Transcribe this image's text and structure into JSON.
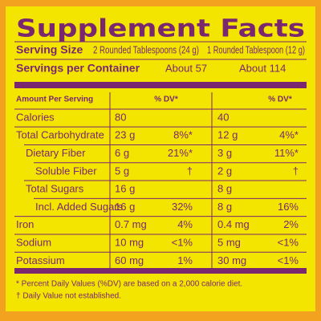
{
  "title": "Supplement Facts",
  "serving_size": {
    "label": "Serving Size",
    "values": [
      "2 Rounded Tablespoons (24 g)",
      "1 Rounded Tablespoon (12 g)"
    ]
  },
  "servings_per_container": {
    "label": "Servings per Container",
    "values": [
      "About 57",
      "About 114"
    ]
  },
  "table": {
    "header": [
      "Amount Per Serving",
      "% DV*",
      "% DV*"
    ],
    "rows": [
      [
        "Calories",
        "80",
        null,
        "40",
        null
      ],
      [
        "Total Carbohydrate",
        "23 g",
        "8%*",
        "12 g",
        "4%*"
      ],
      [
        "Dietary Fiber",
        "6 g",
        "21%*",
        "3 g",
        "11%*"
      ],
      [
        "Soluble Fiber",
        "5 g",
        "†",
        "2 g",
        "†"
      ],
      [
        "Total Sugars",
        "16 g",
        null,
        "8 g",
        null
      ],
      [
        "Incl. Added Sugars",
        "16 g",
        "32%",
        "8 g",
        "16%"
      ],
      [
        "Iron",
        "0.7 mg",
        "4%",
        "0.4 mg",
        "2%"
      ],
      [
        "Sodium",
        "10 mg",
        "<1%",
        "5 mg",
        "<1%"
      ],
      [
        "Potassium",
        "60 mg",
        "1%",
        "30 mg",
        "<1%"
      ]
    ]
  },
  "footnotes": [
    "* Percent Daily Values (%DV) are based on a 2,000 calorie diet.",
    "† Daily Value not established."
  ]
}
